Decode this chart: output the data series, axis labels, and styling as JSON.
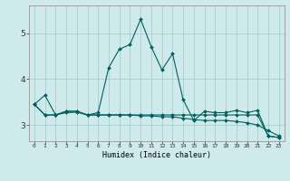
{
  "xlabel": "Humidex (Indice chaleur)",
  "background_color": "#ceeaea",
  "grid_color": "#aacfcf",
  "line_color": "#006060",
  "x_ticks": [
    0,
    1,
    2,
    3,
    4,
    5,
    6,
    7,
    8,
    9,
    10,
    11,
    12,
    13,
    14,
    15,
    16,
    17,
    18,
    19,
    20,
    21,
    22,
    23
  ],
  "ylim": [
    2.65,
    5.6
  ],
  "yticks": [
    3,
    4,
    5
  ],
  "series1": [
    3.45,
    3.65,
    3.22,
    3.3,
    3.3,
    3.22,
    3.27,
    4.25,
    4.65,
    4.75,
    5.3,
    4.7,
    4.2,
    4.55,
    3.55,
    3.1,
    3.3,
    3.27,
    3.27,
    3.32,
    3.27,
    3.32,
    2.76,
    2.73
  ],
  "series2": [
    3.45,
    3.22,
    3.22,
    3.3,
    3.3,
    3.22,
    3.22,
    3.22,
    3.22,
    3.22,
    3.22,
    3.22,
    3.22,
    3.22,
    3.22,
    3.22,
    3.22,
    3.22,
    3.22,
    3.22,
    3.22,
    3.22,
    2.76,
    2.73
  ],
  "series3": [
    3.45,
    3.22,
    3.22,
    3.27,
    3.28,
    3.22,
    3.22,
    3.22,
    3.22,
    3.22,
    3.2,
    3.2,
    3.18,
    3.18,
    3.15,
    3.12,
    3.1,
    3.1,
    3.1,
    3.08,
    3.05,
    3.0,
    2.88,
    2.76
  ]
}
